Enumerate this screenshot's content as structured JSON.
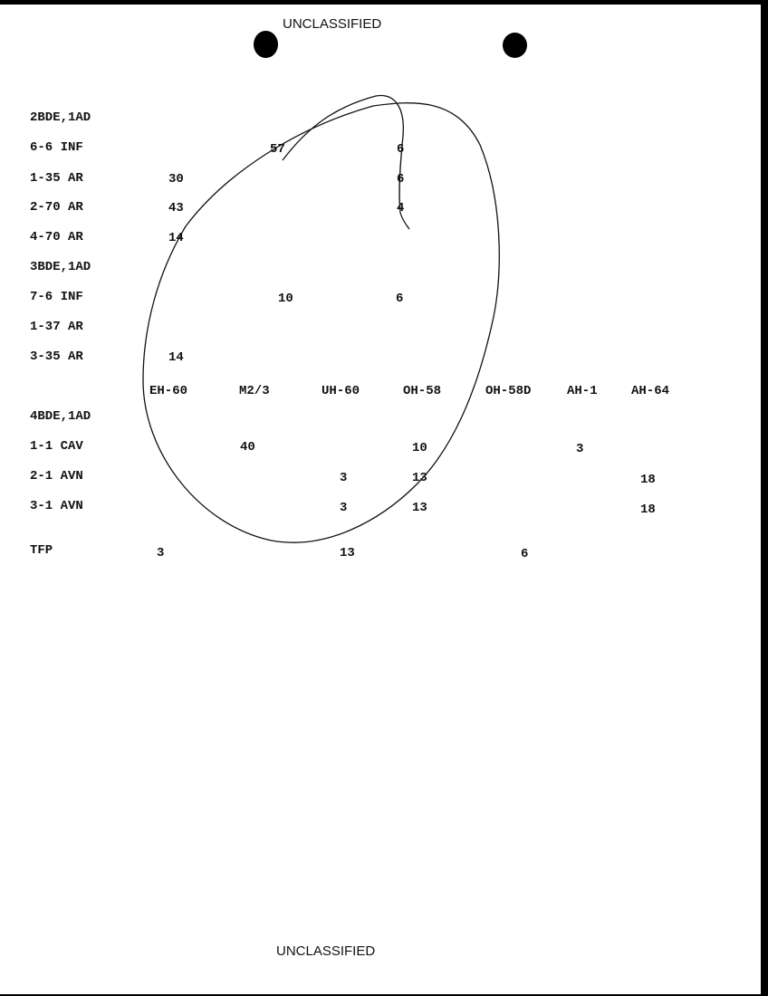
{
  "classification_top": "UNCLASSIFIED",
  "classification_bottom": "UNCLASSIFIED",
  "columns": [
    "EH-60",
    "M2/3",
    "UH-60",
    "OH-58",
    "OH-58D",
    "AH-1",
    "AH-64"
  ],
  "groups": [
    {
      "unit": "2BDE,1AD",
      "rows": [
        {
          "unit": "6-6 INF",
          "M2/3": "57",
          "OH-58": "6"
        },
        {
          "unit": "1-35 AR",
          "EH-60": "30",
          "OH-58": "6"
        },
        {
          "unit": "2-70 AR",
          "EH-60": "43",
          "OH-58": "4"
        },
        {
          "unit": "4-70 AR",
          "EH-60": "14"
        }
      ]
    },
    {
      "unit": "3BDE,1AD",
      "rows": [
        {
          "unit": "7-6 INF",
          "M2/3": "10",
          "OH-58": "6"
        },
        {
          "unit": "1-37 AR"
        },
        {
          "unit": "3-35 AR",
          "EH-60": "14"
        }
      ]
    },
    {
      "unit": "4BDE,1AD",
      "rows": [
        {
          "unit": "1-1 CAV",
          "M2/3": "40",
          "OH-58": "10",
          "AH-1": "3"
        },
        {
          "unit": "2-1 AVN",
          "UH-60": "3",
          "OH-58": "13",
          "AH-64": "18"
        },
        {
          "unit": "3-1 AVN",
          "UH-60": "3",
          "OH-58": "13",
          "AH-64": "18"
        }
      ]
    },
    {
      "unit": "TFP",
      "EH-60": "3",
      "UH-60": "13",
      "OH-58D": "6"
    }
  ]
}
